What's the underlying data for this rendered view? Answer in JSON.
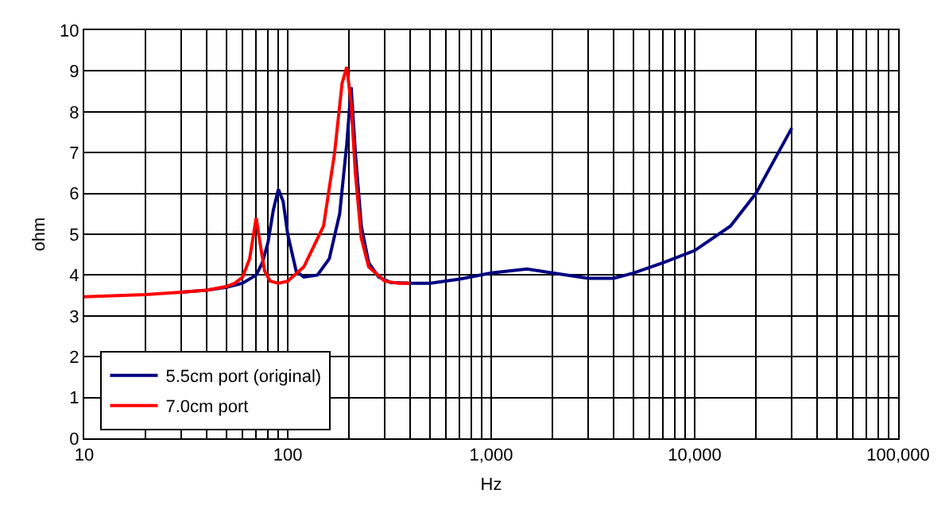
{
  "chart_data": {
    "type": "line",
    "xlabel": "Hz",
    "ylabel": "ohm",
    "log": "x",
    "grid": true,
    "legend": "bottom left",
    "line_style": "solid",
    "marker": "none",
    "xlim": [
      10,
      100000
    ],
    "ylim": [
      0,
      10
    ],
    "xticks": [
      {
        "value": 10,
        "label": "10"
      },
      {
        "value": 20,
        "label": null
      },
      {
        "value": 30,
        "label": null
      },
      {
        "value": 40,
        "label": null
      },
      {
        "value": 50,
        "label": null
      },
      {
        "value": 60,
        "label": null
      },
      {
        "value": 70,
        "label": null
      },
      {
        "value": 80,
        "label": null
      },
      {
        "value": 90,
        "label": null
      },
      {
        "value": 100,
        "label": "100"
      },
      {
        "value": 200,
        "label": null
      },
      {
        "value": 300,
        "label": null
      },
      {
        "value": 400,
        "label": null
      },
      {
        "value": 500,
        "label": null
      },
      {
        "value": 600,
        "label": null
      },
      {
        "value": 700,
        "label": null
      },
      {
        "value": 800,
        "label": null
      },
      {
        "value": 900,
        "label": null
      },
      {
        "value": 1000,
        "label": "1,000"
      },
      {
        "value": 2000,
        "label": null
      },
      {
        "value": 3000,
        "label": null
      },
      {
        "value": 4000,
        "label": null
      },
      {
        "value": 5000,
        "label": null
      },
      {
        "value": 6000,
        "label": null
      },
      {
        "value": 7000,
        "label": null
      },
      {
        "value": 8000,
        "label": null
      },
      {
        "value": 9000,
        "label": null
      },
      {
        "value": 10000,
        "label": "10,000"
      },
      {
        "value": 20000,
        "label": null
      },
      {
        "value": 30000,
        "label": null
      },
      {
        "value": 40000,
        "label": null
      },
      {
        "value": 50000,
        "label": null
      },
      {
        "value": 60000,
        "label": null
      },
      {
        "value": 70000,
        "label": null
      },
      {
        "value": 80000,
        "label": null
      },
      {
        "value": 90000,
        "label": null
      },
      {
        "value": 100000,
        "label": "100,000"
      }
    ],
    "yticks": [
      0,
      1,
      2,
      3,
      4,
      5,
      6,
      7,
      8,
      9,
      10
    ],
    "series": [
      {
        "name": "5.5cm port (original)",
        "color": "#000080",
        "x": [
          30,
          40,
          50,
          60,
          70,
          75,
          80,
          85,
          90,
          95,
          100,
          110,
          120,
          140,
          160,
          180,
          195,
          205,
          215,
          230,
          250,
          280,
          320,
          400,
          500,
          700,
          1000,
          1500,
          2000,
          3000,
          4000,
          5000,
          7000,
          10000,
          15000,
          20000,
          30000
        ],
        "values": [
          3.58,
          3.63,
          3.7,
          3.8,
          4.0,
          4.3,
          4.8,
          5.6,
          6.1,
          5.8,
          5.0,
          4.1,
          3.95,
          4.0,
          4.4,
          5.5,
          7.2,
          8.6,
          7.0,
          5.2,
          4.3,
          3.95,
          3.82,
          3.8,
          3.8,
          3.9,
          4.05,
          4.15,
          4.05,
          3.92,
          3.92,
          4.05,
          4.3,
          4.6,
          5.2,
          6.0,
          7.6
        ]
      },
      {
        "name": "7.0cm port",
        "color": "#ff0000",
        "x": [
          10,
          20,
          30,
          40,
          50,
          55,
          60,
          65,
          70,
          73,
          77,
          82,
          90,
          100,
          120,
          150,
          170,
          185,
          195,
          205,
          215,
          230,
          250,
          300,
          350,
          400
        ],
        "values": [
          3.47,
          3.52,
          3.58,
          3.63,
          3.72,
          3.8,
          3.95,
          4.4,
          5.4,
          4.8,
          4.1,
          3.85,
          3.8,
          3.85,
          4.2,
          5.2,
          7.0,
          8.7,
          9.1,
          8.2,
          6.5,
          4.9,
          4.2,
          3.85,
          3.8,
          3.8
        ]
      }
    ]
  }
}
